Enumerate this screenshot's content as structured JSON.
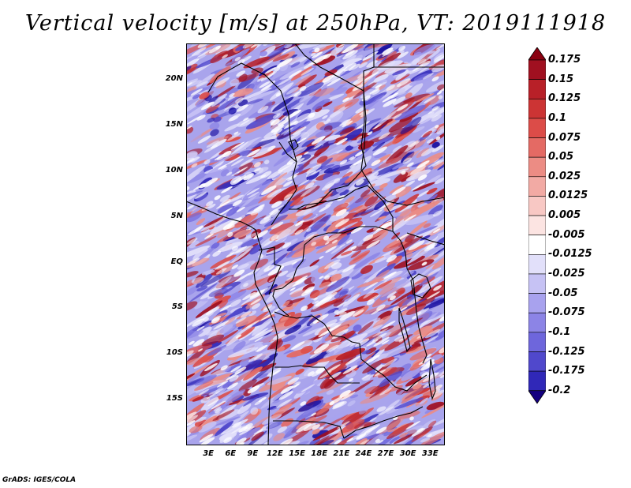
{
  "title": "Vertical velocity [m/s] at 250hPa, VT: 2019111918",
  "map": {
    "lon_range": [
      0,
      35
    ],
    "lat_range": [
      -20,
      24
    ],
    "lat_labels": [
      {
        "value": 20,
        "label": "20N"
      },
      {
        "value": 15,
        "label": "15N"
      },
      {
        "value": 10,
        "label": "10N"
      },
      {
        "value": 5,
        "label": "5N"
      },
      {
        "value": 0,
        "label": "EQ"
      },
      {
        "value": -5,
        "label": "5S"
      },
      {
        "value": -10,
        "label": "10S"
      },
      {
        "value": -15,
        "label": "15S"
      }
    ],
    "lon_labels": [
      {
        "value": 3,
        "label": "3E"
      },
      {
        "value": 6,
        "label": "6E"
      },
      {
        "value": 9,
        "label": "9E"
      },
      {
        "value": 12,
        "label": "12E"
      },
      {
        "value": 15,
        "label": "15E"
      },
      {
        "value": 18,
        "label": "18E"
      },
      {
        "value": 21,
        "label": "21E"
      },
      {
        "value": 24,
        "label": "24E"
      },
      {
        "value": 27,
        "label": "27E"
      },
      {
        "value": 30,
        "label": "30E"
      },
      {
        "value": 33,
        "label": "33E"
      }
    ]
  },
  "colorbar": {
    "levels": [
      {
        "label": "0.175",
        "color": "#a01020"
      },
      {
        "label": "0.15",
        "color": "#b82028"
      },
      {
        "label": "0.125",
        "color": "#cc3434"
      },
      {
        "label": "0.1",
        "color": "#dc4c48"
      },
      {
        "label": "0.075",
        "color": "#e46a64"
      },
      {
        "label": "0.05",
        "color": "#ec8c84"
      },
      {
        "label": "0.025",
        "color": "#f2aaa4"
      },
      {
        "label": "0.0125",
        "color": "#f8c8c4"
      },
      {
        "label": "0.005",
        "color": "#fce4e2"
      },
      {
        "label": "-0.005",
        "color": "#ffffff"
      },
      {
        "label": "-0.0125",
        "color": "#e2e0fa"
      },
      {
        "label": "-0.025",
        "color": "#c6c2f4"
      },
      {
        "label": "-0.05",
        "color": "#a8a2ee"
      },
      {
        "label": "-0.075",
        "color": "#8c84e6"
      },
      {
        "label": "-0.1",
        "color": "#6e66dc"
      },
      {
        "label": "-0.125",
        "color": "#5048cc"
      },
      {
        "label": "-0.175",
        "color": "#3028b8"
      },
      {
        "label": "-0.2",
        "color": "#1a10a0"
      }
    ],
    "top_arrow_color": "#8a0010",
    "bottom_arrow_color": "#140080"
  },
  "credit": "GrADS: IGES/COLA"
}
